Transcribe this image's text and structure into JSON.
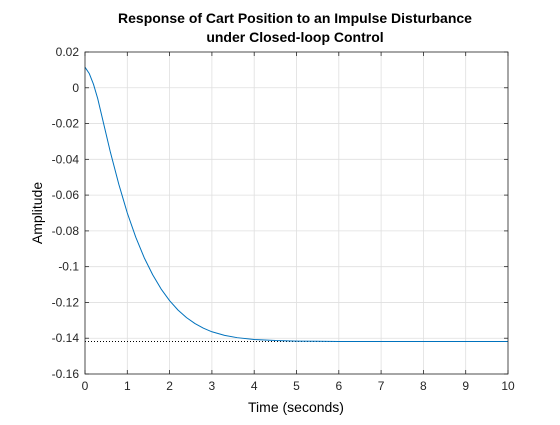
{
  "chart_data": {
    "type": "line",
    "title": "Response of Cart Position to an Impulse Disturbance",
    "subtitle": "under Closed-loop Control",
    "xlabel": "Time (seconds)",
    "ylabel": "Amplitude",
    "xlim": [
      0,
      10
    ],
    "ylim": [
      -0.16,
      0.02
    ],
    "xticks": [
      0,
      1,
      2,
      3,
      4,
      5,
      6,
      7,
      8,
      9,
      10
    ],
    "xtick_labels": [
      "0",
      "1",
      "2",
      "3",
      "4",
      "5",
      "6",
      "7",
      "8",
      "9",
      "10"
    ],
    "yticks": [
      0.02,
      0,
      -0.02,
      -0.04,
      -0.06,
      -0.08,
      -0.1,
      -0.12,
      -0.14,
      -0.16
    ],
    "ytick_labels": [
      "0.02",
      "0",
      "-0.02",
      "-0.04",
      "-0.06",
      "-0.08",
      "-0.1",
      "-0.12",
      "-0.14",
      "-0.16"
    ],
    "grid": true,
    "series": [
      {
        "color": "#0072bd",
        "x": [
          0,
          0.1,
          0.2,
          0.3,
          0.4,
          0.5,
          0.6,
          0.7,
          0.8,
          0.9,
          1.0,
          1.2,
          1.4,
          1.6,
          1.8,
          2.0,
          2.2,
          2.4,
          2.6,
          2.8,
          3.0,
          3.3,
          3.6,
          4.0,
          4.5,
          5.0,
          5.5,
          6.0,
          7.0,
          8.0,
          9.0,
          10.0
        ],
        "y": [
          0.0115,
          0.008,
          0.002,
          -0.006,
          -0.016,
          -0.026,
          -0.036,
          -0.045,
          -0.054,
          -0.062,
          -0.07,
          -0.0835,
          -0.095,
          -0.1045,
          -0.1125,
          -0.119,
          -0.1243,
          -0.1285,
          -0.1318,
          -0.1344,
          -0.1364,
          -0.1384,
          -0.1397,
          -0.1407,
          -0.1413,
          -0.1416,
          -0.1417,
          -0.1418,
          -0.1418,
          -0.1418,
          -0.1418,
          -0.1418
        ]
      }
    ],
    "reference_line": {
      "y": -0.1418,
      "style": "dotted",
      "color": "#000000"
    }
  }
}
